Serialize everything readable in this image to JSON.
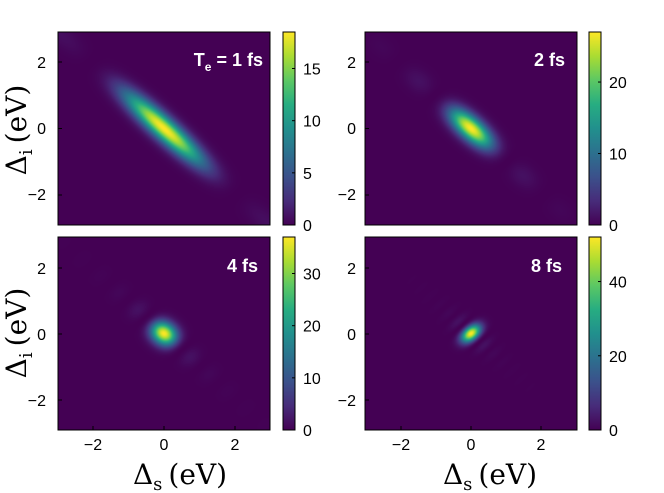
{
  "chart_data": [
    {
      "type": "heatmap",
      "annotation_main": "T",
      "annotation_sub": "e",
      "annotation_rest": " = 1 fs",
      "pulse_fs": 1,
      "xlim": [
        -3,
        3
      ],
      "ylim": [
        -3,
        3
      ],
      "xticks": [
        "−2",
        "0",
        "2"
      ],
      "yticks": [
        "2",
        "0",
        "−2"
      ],
      "colorbar": {
        "min": 0,
        "max": 18.5,
        "ticks": [
          "15",
          "10",
          "5",
          "0"
        ],
        "tick_values": [
          15,
          10,
          5,
          0
        ]
      },
      "grid": false
    },
    {
      "type": "heatmap",
      "annotation_main": "2 fs",
      "pulse_fs": 2,
      "xlim": [
        -3,
        3
      ],
      "ylim": [
        -3,
        3
      ],
      "xticks": [
        "−2",
        "0",
        "2"
      ],
      "yticks": [
        "2",
        "0",
        "−2"
      ],
      "colorbar": {
        "min": 0,
        "max": 27,
        "ticks": [
          "20",
          "10",
          "0"
        ],
        "tick_values": [
          20,
          10,
          0
        ]
      },
      "grid": false
    },
    {
      "type": "heatmap",
      "annotation_main": "4 fs",
      "pulse_fs": 4,
      "xlim": [
        -3,
        3
      ],
      "ylim": [
        -3,
        3
      ],
      "xticks": [
        "−2",
        "0",
        "2"
      ],
      "yticks": [
        "2",
        "0",
        "−2"
      ],
      "colorbar": {
        "min": 0,
        "max": 37,
        "ticks": [
          "30",
          "20",
          "10",
          "0"
        ],
        "tick_values": [
          30,
          20,
          10,
          0
        ]
      },
      "grid": false
    },
    {
      "type": "heatmap",
      "annotation_main": "8 fs",
      "pulse_fs": 8,
      "xlim": [
        -3,
        3
      ],
      "ylim": [
        -3,
        3
      ],
      "xticks": [
        "−2",
        "0",
        "2"
      ],
      "yticks": [
        "2",
        "0",
        "−2"
      ],
      "colorbar": {
        "min": 0,
        "max": 52,
        "ticks": [
          "40",
          "20",
          "0"
        ],
        "tick_values": [
          40,
          20,
          0
        ]
      },
      "grid": false
    }
  ],
  "axes": {
    "ylabel_main": "Δ",
    "ylabel_sub": "i",
    "ylabel_unit": "(eV)",
    "xlabel_main": "Δ",
    "xlabel_sub": "s",
    "xlabel_unit": "(eV)"
  },
  "colormap": [
    "#440154",
    "#472c7a",
    "#3b518b",
    "#2c718e",
    "#21908d",
    "#27ad81",
    "#5cc863",
    "#aadc32",
    "#fde725"
  ]
}
